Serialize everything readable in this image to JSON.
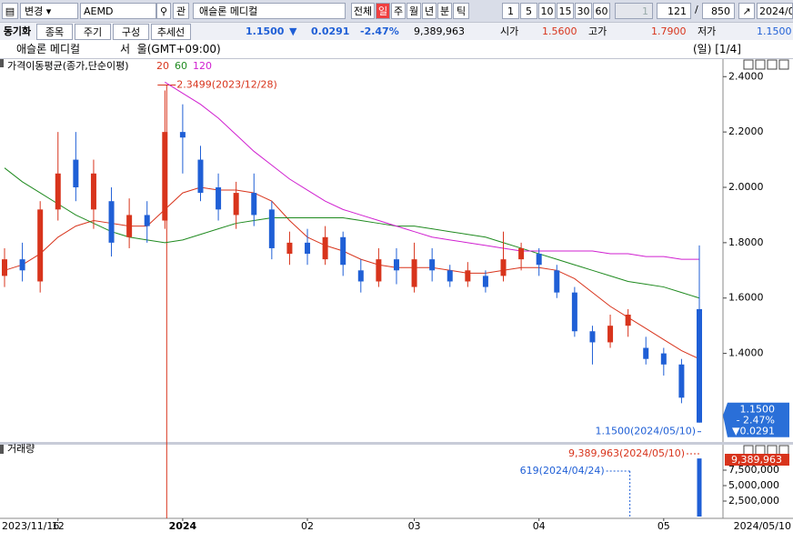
{
  "toolbar": {
    "change": "변경",
    "code": "AEMD",
    "watch": "관",
    "name": "애슬론 메디컬",
    "periods": [
      "전체",
      "일",
      "주",
      "월",
      "년",
      "분",
      "틱"
    ],
    "minutes": [
      "1",
      "5",
      "10",
      "15",
      "30",
      "60"
    ],
    "unit": "1",
    "count": "121",
    "slash": "/",
    "total": "850",
    "date": "2024/0"
  },
  "buttons": [
    "동기화",
    "종목",
    "주기",
    "구성",
    "추세선"
  ],
  "quote": {
    "price": "1.1500",
    "arrow": "▼",
    "change": "0.0291",
    "rate": "-2.47%",
    "volume": "9,389,963",
    "open_label": "시가",
    "open": "1.5600",
    "high_label": "고가",
    "high": "1.7900",
    "low_label": "저가",
    "low": "1.1500"
  },
  "header": {
    "name": "애슬론 메디컬",
    "zone": "서  울(GMT+09:00)",
    "page": "(일) [1/4]"
  },
  "chart_data": [
    {
      "type": "candlestick",
      "title": "가격이동평균(종가,단순이평)",
      "categories": [
        "2023/11/16",
        null,
        null,
        "12",
        null,
        null,
        null,
        null,
        null,
        null,
        "2024",
        null,
        null,
        null,
        null,
        null,
        null,
        "02",
        null,
        null,
        null,
        null,
        null,
        "03",
        null,
        null,
        null,
        null,
        null,
        null,
        "04",
        null,
        null,
        null,
        null,
        null,
        null,
        "05",
        null,
        "2024/05/10"
      ],
      "open": [
        1.68,
        1.74,
        1.66,
        1.92,
        2.1,
        1.92,
        1.95,
        1.82,
        1.9,
        1.88,
        2.2,
        2.1,
        2.0,
        1.9,
        1.98,
        1.92,
        1.76,
        1.8,
        1.74,
        1.82,
        1.7,
        1.66,
        1.74,
        1.64,
        1.74,
        1.7,
        1.66,
        1.68,
        1.68,
        1.74,
        1.76,
        1.7,
        1.62,
        1.48,
        1.44,
        1.5,
        1.42,
        1.4,
        1.36,
        1.56
      ],
      "high": [
        1.78,
        1.8,
        1.95,
        2.2,
        2.2,
        2.1,
        2.0,
        1.96,
        1.95,
        2.3499,
        2.3,
        2.15,
        2.05,
        2.02,
        2.05,
        1.95,
        1.84,
        1.85,
        1.86,
        1.84,
        1.74,
        1.78,
        1.78,
        1.8,
        1.78,
        1.72,
        1.73,
        1.7,
        1.84,
        1.8,
        1.78,
        1.72,
        1.64,
        1.5,
        1.54,
        1.56,
        1.46,
        1.42,
        1.38,
        1.79
      ],
      "low": [
        1.64,
        1.66,
        1.62,
        1.88,
        1.95,
        1.85,
        1.75,
        1.78,
        1.8,
        1.85,
        2.05,
        1.95,
        1.88,
        1.85,
        1.86,
        1.74,
        1.72,
        1.72,
        1.72,
        1.68,
        1.62,
        1.64,
        1.65,
        1.62,
        1.66,
        1.64,
        1.64,
        1.62,
        1.66,
        1.7,
        1.68,
        1.6,
        1.46,
        1.36,
        1.42,
        1.46,
        1.36,
        1.32,
        1.22,
        1.15
      ],
      "close": [
        1.74,
        1.7,
        1.92,
        2.05,
        2.0,
        2.05,
        1.8,
        1.9,
        1.86,
        2.2,
        2.18,
        1.98,
        1.92,
        1.98,
        1.9,
        1.78,
        1.8,
        1.76,
        1.82,
        1.72,
        1.66,
        1.74,
        1.7,
        1.74,
        1.7,
        1.66,
        1.7,
        1.64,
        1.74,
        1.78,
        1.72,
        1.62,
        1.48,
        1.44,
        1.5,
        1.54,
        1.38,
        1.36,
        1.24,
        1.15
      ],
      "up_color": "#d8341c",
      "down_color": "#1f5fd6",
      "series": [
        {
          "name": "20",
          "color": "#d8341c",
          "values": [
            1.7,
            1.72,
            1.76,
            1.82,
            1.86,
            1.88,
            1.87,
            1.86,
            1.86,
            1.92,
            1.98,
            2.0,
            1.99,
            1.99,
            1.98,
            1.95,
            1.88,
            1.82,
            1.79,
            1.77,
            1.74,
            1.72,
            1.71,
            1.71,
            1.71,
            1.7,
            1.69,
            1.69,
            1.7,
            1.71,
            1.71,
            1.7,
            1.67,
            1.62,
            1.57,
            1.53,
            1.49,
            1.45,
            1.41,
            1.38
          ]
        },
        {
          "name": "60",
          "color": "#1f8a1f",
          "values": [
            2.07,
            2.02,
            1.98,
            1.94,
            1.9,
            1.87,
            1.84,
            1.82,
            1.81,
            1.8,
            1.81,
            1.83,
            1.85,
            1.87,
            1.88,
            1.89,
            1.89,
            1.89,
            1.89,
            1.89,
            1.88,
            1.87,
            1.86,
            1.86,
            1.85,
            1.84,
            1.83,
            1.82,
            1.8,
            1.78,
            1.76,
            1.74,
            1.72,
            1.7,
            1.68,
            1.66,
            1.65,
            1.64,
            1.62,
            1.6
          ]
        },
        {
          "name": "120",
          "color": "#d020d0",
          "values": [
            null,
            null,
            null,
            null,
            null,
            null,
            null,
            null,
            null,
            2.38,
            2.34,
            2.3,
            2.25,
            2.19,
            2.13,
            2.08,
            2.03,
            1.99,
            1.95,
            1.92,
            1.9,
            1.88,
            1.86,
            1.84,
            1.82,
            1.81,
            1.8,
            1.79,
            1.78,
            1.77,
            1.77,
            1.77,
            1.77,
            1.77,
            1.76,
            1.76,
            1.75,
            1.75,
            1.74,
            1.74
          ]
        }
      ],
      "ylim": [
        1.08,
        2.46
      ],
      "yticks": [
        {
          "value": 2.4,
          "label": "2.4000"
        },
        {
          "value": 2.2,
          "label": "2.2000"
        },
        {
          "value": 2.0,
          "label": "2.0000"
        },
        {
          "value": 1.8,
          "label": "1.8000"
        },
        {
          "value": 1.6,
          "label": "1.6000"
        },
        {
          "value": 1.4,
          "label": "1.4000"
        }
      ],
      "high_note": "2.3499(2023/12/28)",
      "low_note": "1.1500(2024/05/10)",
      "last_box": [
        "1.1500",
        "- 2.47%",
        "▼0.0291"
      ]
    },
    {
      "type": "bar",
      "title": "거래량",
      "color": "#1f5fd6",
      "values": [
        0,
        0,
        0,
        0,
        0,
        0,
        0,
        0,
        0,
        0,
        0,
        0,
        0,
        0,
        0,
        0,
        0,
        0,
        0,
        0,
        0,
        0,
        0,
        0,
        0,
        0,
        0,
        0,
        0,
        0,
        0,
        0,
        0,
        0,
        0,
        619,
        0,
        0,
        0,
        9389963
      ],
      "ylim": [
        0,
        10000000
      ],
      "yticks": [
        {
          "value": 7500000,
          "label": "7,500,000"
        },
        {
          "value": 5000000,
          "label": "5,000,000"
        },
        {
          "value": 2500000,
          "label": "2,500,000"
        }
      ],
      "max_note": "9,389,963(2024/05/10)",
      "min_note": "619(2024/04/24)",
      "last_box": "9,389,963"
    }
  ]
}
